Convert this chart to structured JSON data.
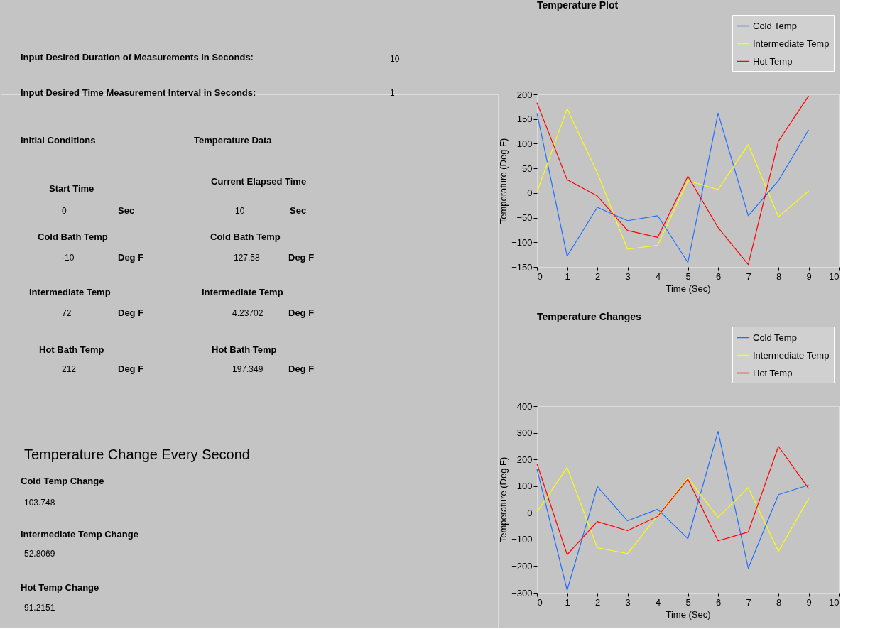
{
  "chart_data": [
    {
      "type": "other",
      "annotations": [
        "Input Desired Duration of Measurements in Seconds:",
        "10",
        "Input Desired Time Measurement Interval in Seconds:",
        "1",
        "Initial Conditions",
        "Temperature Data",
        "Start Time",
        "0",
        "Sec",
        "Cold Bath Temp",
        "-10",
        "Deg F",
        "Intermediate Temp",
        "72",
        "Deg F",
        "Hot Bath Temp",
        "212",
        "Deg F",
        "Current Elapsed Time",
        "10",
        "Sec",
        "Cold Bath Temp",
        "127.58",
        "Deg F",
        "Intermediate Temp",
        "4.23702",
        "Deg F",
        "Hot Bath Temp",
        "197.349",
        "Deg F",
        "Temperature Change Every Second",
        "Cold Temp Change",
        "103.748",
        "Intermediate Temp Change",
        "52.8069",
        "Hot Temp Change",
        "91.2151"
      ]
    },
    {
      "type": "line",
      "title": "Temperature Plot",
      "xlabel": "Time (Sec)",
      "ylabel": "Temperature (Deg F)",
      "x": [
        0,
        1,
        2,
        3,
        4,
        5,
        6,
        7,
        8,
        9
      ],
      "xlim": [
        0,
        10
      ],
      "xticks": [
        0,
        1,
        2,
        3,
        4,
        5,
        6,
        7,
        8,
        9,
        10
      ],
      "ylim": [
        -150,
        200
      ],
      "yticks": [
        -150,
        -100,
        -50,
        0,
        50,
        100,
        150,
        200
      ],
      "grid": false,
      "legend": "top right",
      "line_style": "solid",
      "series": [
        {
          "name": "Cold Temp",
          "color": "#1f6fff",
          "values": [
            162,
            -128,
            -29,
            -56,
            -46,
            -141,
            162,
            -46,
            25,
            128
          ]
        },
        {
          "name": "Intermediate Temp",
          "color": "#ffff00",
          "values": [
            2,
            171,
            41,
            -114,
            -106,
            25,
            7,
            98,
            -48,
            4
          ]
        },
        {
          "name": "Hot Temp",
          "color": "#ff0000",
          "values": [
            183,
            27,
            -6,
            -76,
            -90,
            34,
            -70,
            -145,
            105,
            197
          ]
        }
      ]
    },
    {
      "type": "line",
      "title": "Temperature Changes",
      "xlabel": "Time (Sec)",
      "ylabel": "Temperature (Deg F)",
      "x": [
        0,
        1,
        2,
        3,
        4,
        5,
        6,
        7,
        8,
        9
      ],
      "xlim": [
        0,
        10
      ],
      "xticks": [
        0,
        1,
        2,
        3,
        4,
        5,
        6,
        7,
        8,
        9,
        10
      ],
      "ylim": [
        -300,
        400
      ],
      "yticks": [
        -300,
        -200,
        -100,
        0,
        100,
        200,
        300,
        400
      ],
      "grid": false,
      "legend": "top right",
      "line_style": "solid",
      "series": [
        {
          "name": "Cold Temp",
          "color": "#1f6fff",
          "values": [
            164,
            -290,
            98,
            -30,
            13,
            -97,
            305,
            -208,
            68,
            104
          ]
        },
        {
          "name": "Intermediate Temp",
          "color": "#ffff00",
          "values": [
            3,
            170,
            -131,
            -153,
            -10,
            130,
            -17,
            94,
            -144,
            53
          ]
        },
        {
          "name": "Hot Temp",
          "color": "#ff0000",
          "values": [
            184,
            -157,
            -33,
            -67,
            -13,
            126,
            -105,
            -72,
            249,
            91
          ]
        }
      ]
    }
  ]
}
